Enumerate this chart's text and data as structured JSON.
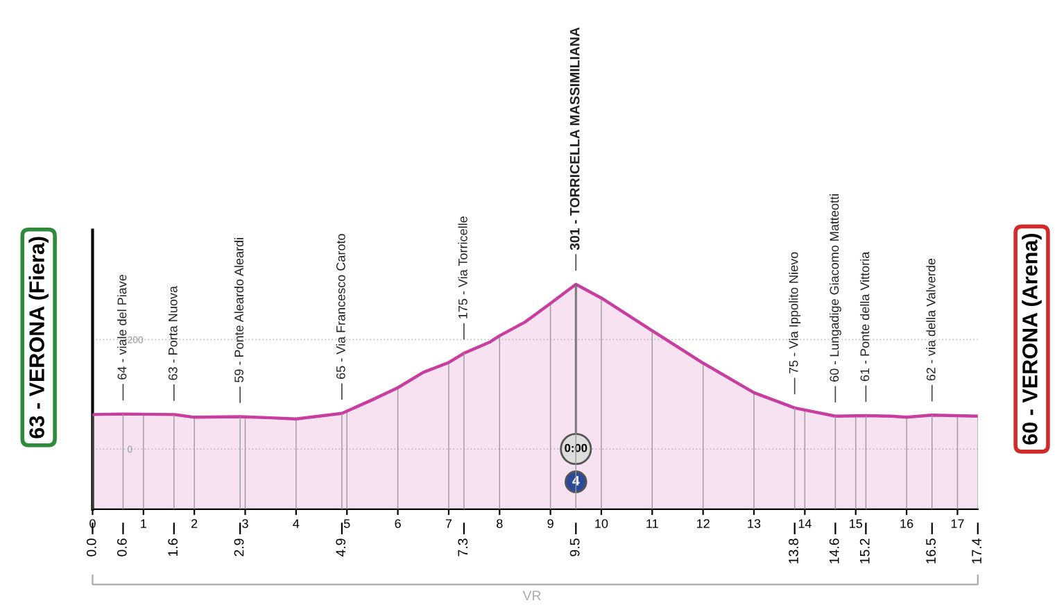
{
  "chart_data": {
    "type": "area",
    "x": [
      0.0,
      0.6,
      1.6,
      2.0,
      2.9,
      3.5,
      4.0,
      4.9,
      5.5,
      6.0,
      6.5,
      7.0,
      7.3,
      7.8,
      8.0,
      8.5,
      9.0,
      9.5,
      10.0,
      11.0,
      12.0,
      13.0,
      13.8,
      14.6,
      15.2,
      15.7,
      16.0,
      16.5,
      17.4
    ],
    "series": [
      {
        "color": "#c83e9e",
        "values": [
          63,
          64,
          63,
          58,
          59,
          57,
          55,
          65,
          90,
          112,
          140,
          158,
          175,
          195,
          207,
          232,
          266,
          301,
          276,
          216,
          157,
          103,
          75,
          60,
          61,
          60,
          58,
          62,
          60
        ]
      }
    ],
    "xlim": [
      0,
      17.4
    ],
    "xticks": [
      0,
      1,
      2,
      3,
      4,
      5,
      6,
      7,
      8,
      9,
      10,
      11,
      12,
      13,
      14,
      15,
      16,
      17
    ],
    "x2lim": [
      0,
      17.4
    ],
    "x2ticks": [
      {
        "value": 0,
        "label": "0.0"
      },
      0.6,
      1.6,
      2.9,
      4.9,
      7.3,
      9.5,
      13.8,
      14.6,
      15.2,
      16.5,
      17.4
    ],
    "ylim": [
      -110,
      400
    ],
    "yticks": [
      0,
      200
    ],
    "grid": true,
    "annotations": [
      {
        "text": "63 - VERONA (Fiera)",
        "x": 0.0,
        "y": 63
      },
      {
        "text": "64 - viale del Piave",
        "x": 0.6,
        "y": 64
      },
      {
        "text": "63 - Porta Nuova",
        "x": 1.6,
        "y": 63
      },
      {
        "text": "59 - Ponte Aleardo Aleardi",
        "x": 2.9,
        "y": 59
      },
      {
        "text": "65 - Via Francesco Caroto",
        "x": 4.9,
        "y": 65
      },
      {
        "text": "175 - Via Torricelle",
        "x": 7.3,
        "y": 175
      },
      {
        "text": "301 - TORRICELLA MASSIMILIANA",
        "x": 9.5,
        "y": 301
      },
      {
        "text": "75 - Via Ippolito Nievo",
        "x": 13.8,
        "y": 75
      },
      {
        "text": "60 - Lungadige Giacomo Matteotti",
        "x": 14.6,
        "y": 60
      },
      {
        "text": "61 - Ponte della Vittoria",
        "x": 15.2,
        "y": 61
      },
      {
        "text": "62 - via della Valverde",
        "x": 16.5,
        "y": 62
      },
      {
        "text": "60 - VERONA (Arena)",
        "x": 17.4,
        "y": 60
      },
      {
        "text": "0:00",
        "x": 9.5,
        "y": 0
      },
      {
        "text": "4",
        "x": 9.5,
        "y": -60
      },
      "VR"
    ]
  }
}
